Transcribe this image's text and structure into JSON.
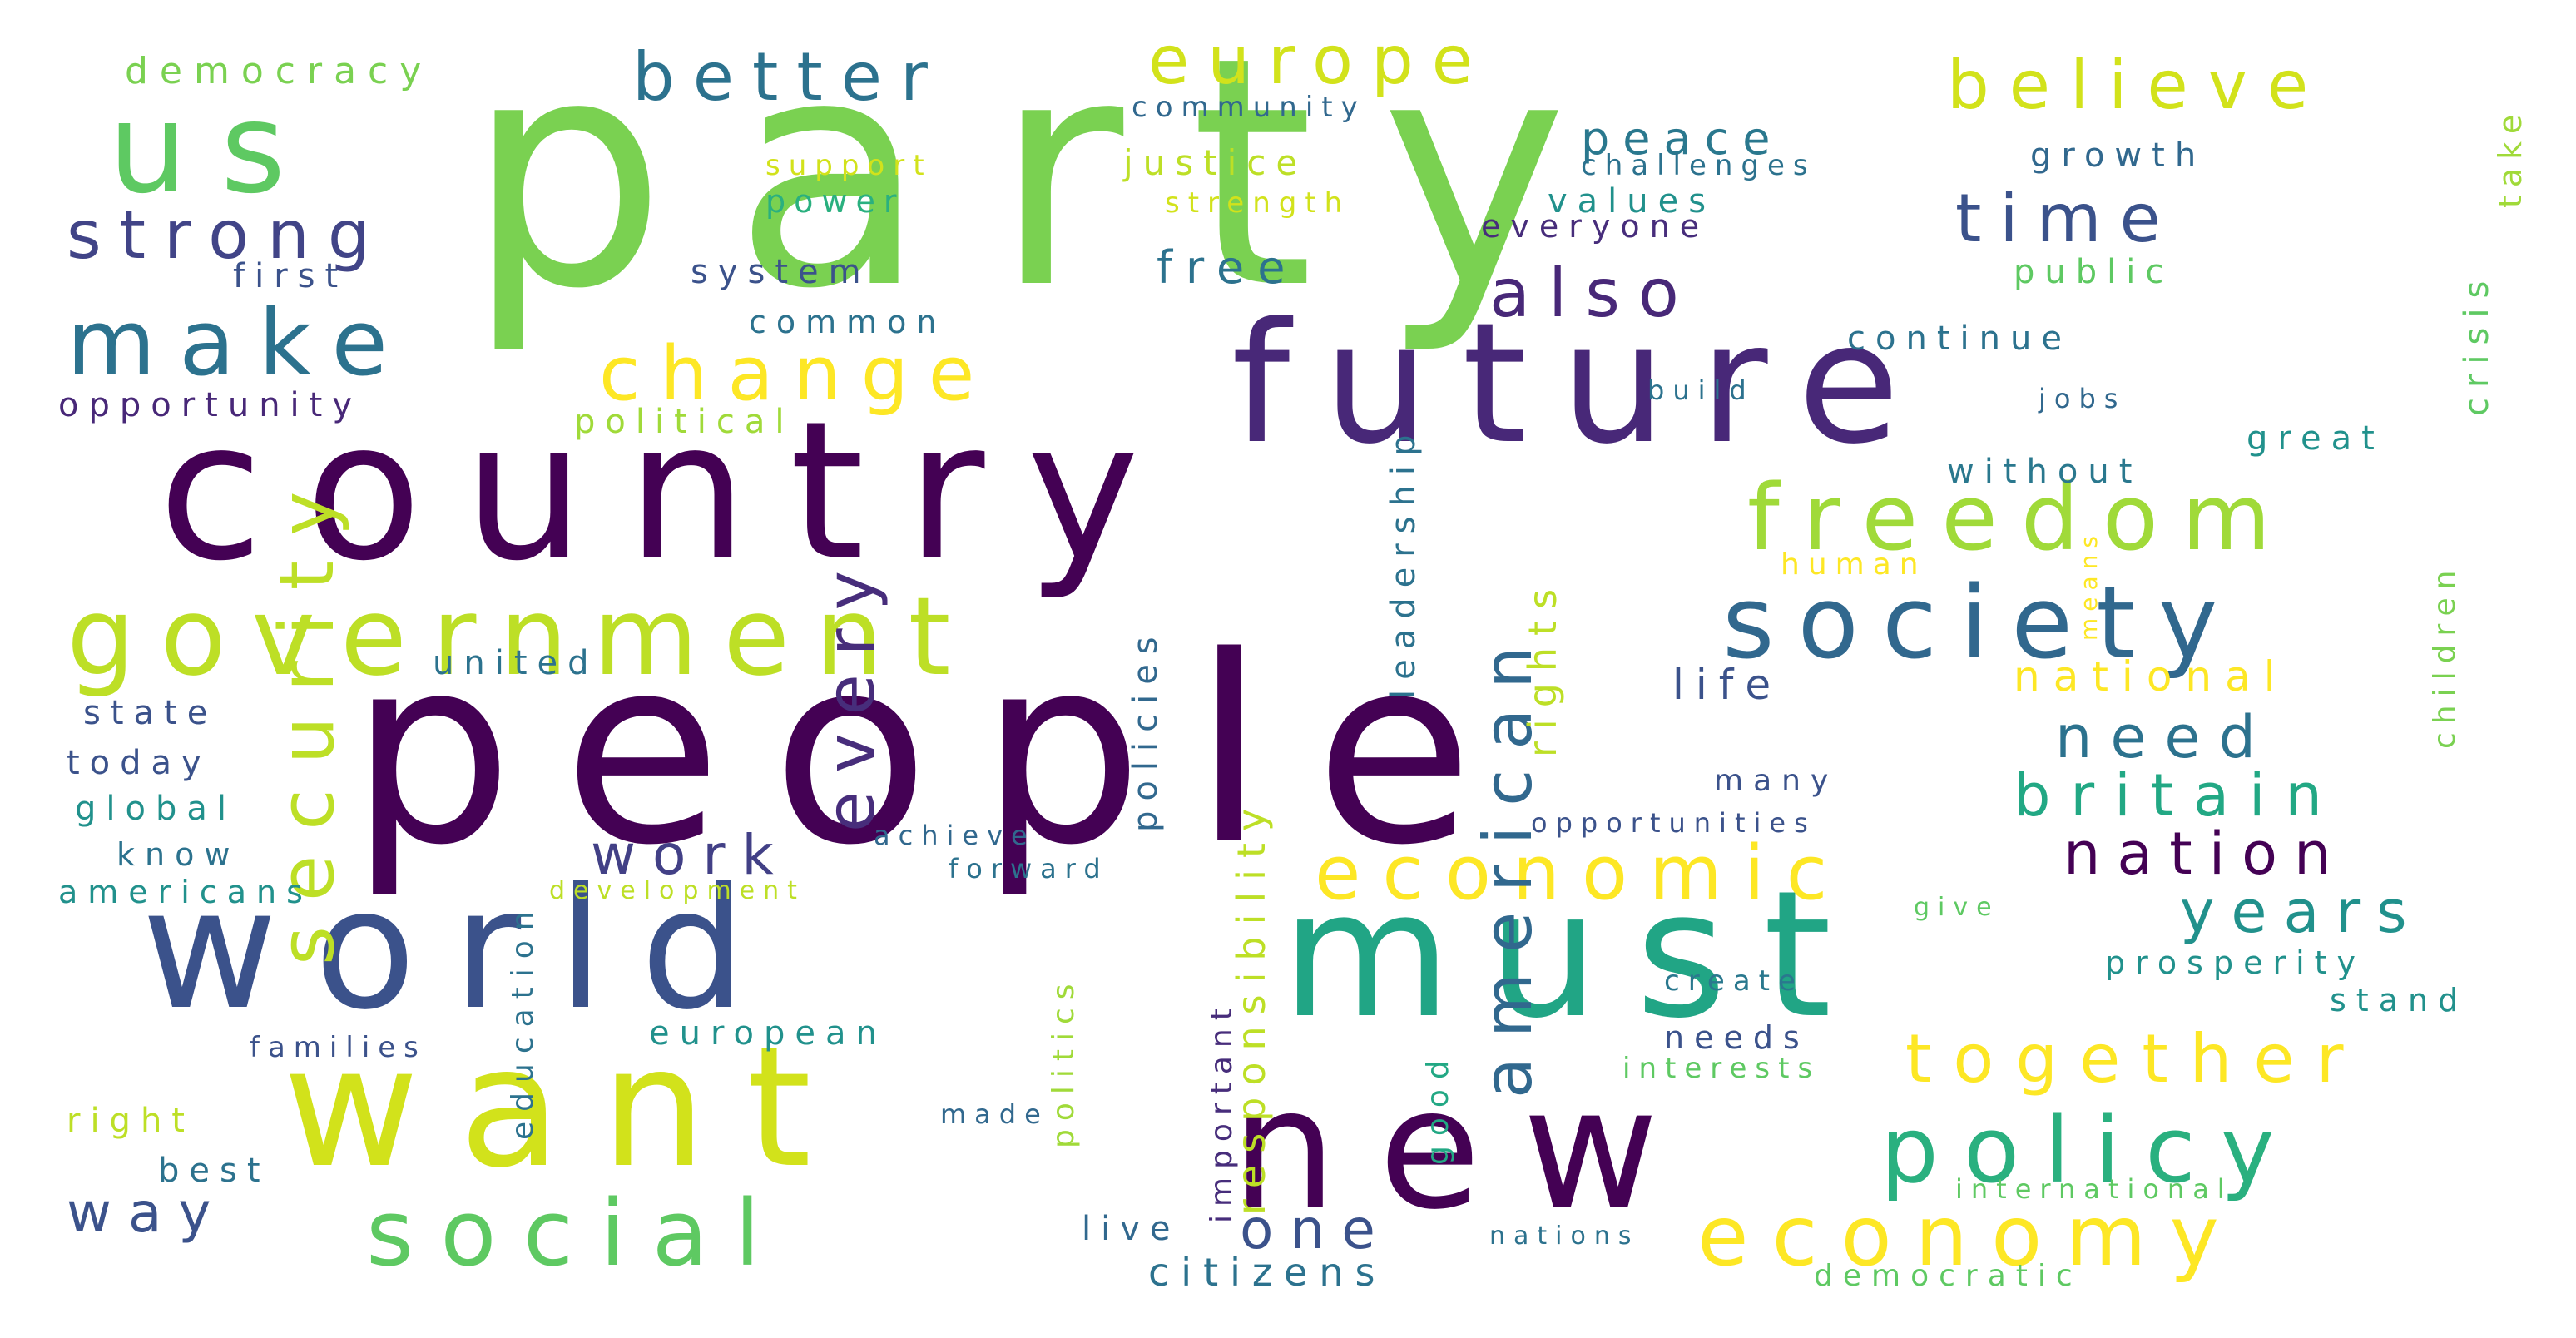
{
  "word_cloud": {
    "words": [
      {
        "text": "party",
        "color": "#7ad151"
      },
      {
        "text": "people",
        "color": "#440154"
      },
      {
        "text": "country",
        "color": "#440154"
      },
      {
        "text": "world",
        "color": "#3b528b"
      },
      {
        "text": "want",
        "color": "#d2e21b"
      },
      {
        "text": "must",
        "color": "#21a585"
      },
      {
        "text": "new",
        "color": "#440154"
      },
      {
        "text": "government",
        "color": "#bddf26"
      },
      {
        "text": "future",
        "color": "#482878"
      },
      {
        "text": "us",
        "color": "#5ec962"
      },
      {
        "text": "society",
        "color": "#31688e"
      },
      {
        "text": "freedom",
        "color": "#a0da39"
      },
      {
        "text": "economic",
        "color": "#fde725"
      },
      {
        "text": "economy",
        "color": "#fde725"
      },
      {
        "text": "policy",
        "color": "#2ab07f"
      },
      {
        "text": "social",
        "color": "#5ec962"
      },
      {
        "text": "make",
        "color": "#2c728e"
      },
      {
        "text": "change",
        "color": "#fde725"
      },
      {
        "text": "security",
        "color": "#bddf26"
      },
      {
        "text": "strong",
        "color": "#414487"
      },
      {
        "text": "better",
        "color": "#2c728e"
      },
      {
        "text": "europe",
        "color": "#d2e21b"
      },
      {
        "text": "believe",
        "color": "#d2e21b"
      },
      {
        "text": "time",
        "color": "#3b528b"
      },
      {
        "text": "also",
        "color": "#482878"
      },
      {
        "text": "every",
        "color": "#472d7b"
      },
      {
        "text": "american",
        "color": "#31688e"
      },
      {
        "text": "together",
        "color": "#fde725"
      },
      {
        "text": "britain",
        "color": "#22a884"
      },
      {
        "text": "nation",
        "color": "#440154"
      },
      {
        "text": "years",
        "color": "#21918c"
      },
      {
        "text": "need",
        "color": "#2c728e"
      },
      {
        "text": "national",
        "color": "#fde725"
      },
      {
        "text": "work",
        "color": "#424086"
      },
      {
        "text": "one",
        "color": "#3b528b"
      },
      {
        "text": "way",
        "color": "#3b528b"
      },
      {
        "text": "peace",
        "color": "#2a788e"
      },
      {
        "text": "democracy",
        "color": "#7ad151"
      },
      {
        "text": "opportunity",
        "color": "#482878"
      },
      {
        "text": "political",
        "color": "#a0da39"
      },
      {
        "text": "first",
        "color": "#3b528b"
      },
      {
        "text": "support",
        "color": "#d2e21b"
      },
      {
        "text": "power",
        "color": "#2ab07f"
      },
      {
        "text": "justice",
        "color": "#bddf26"
      },
      {
        "text": "strength",
        "color": "#d2e21b"
      },
      {
        "text": "community",
        "color": "#31688e"
      },
      {
        "text": "system",
        "color": "#3b528b"
      },
      {
        "text": "common",
        "color": "#2c728e"
      },
      {
        "text": "free",
        "color": "#2c728e"
      },
      {
        "text": "values",
        "color": "#21918c"
      },
      {
        "text": "everyone",
        "color": "#472d7b"
      },
      {
        "text": "challenges",
        "color": "#2c728e"
      },
      {
        "text": "growth",
        "color": "#31688e"
      },
      {
        "text": "public",
        "color": "#5ec962"
      },
      {
        "text": "continue",
        "color": "#2c728e"
      },
      {
        "text": "build",
        "color": "#2c728e"
      },
      {
        "text": "jobs",
        "color": "#31688e"
      },
      {
        "text": "great",
        "color": "#21918c"
      },
      {
        "text": "without",
        "color": "#2a788e"
      },
      {
        "text": "human",
        "color": "#fde725"
      },
      {
        "text": "means",
        "color": "#fde725"
      },
      {
        "text": "children",
        "color": "#7ad151"
      },
      {
        "text": "crisis",
        "color": "#5ec962"
      },
      {
        "text": "take",
        "color": "#a0da39"
      },
      {
        "text": "leadership",
        "color": "#2c728e"
      },
      {
        "text": "rights",
        "color": "#bddf26"
      },
      {
        "text": "responsibility",
        "color": "#bddf26"
      },
      {
        "text": "policies",
        "color": "#31688e"
      },
      {
        "text": "life",
        "color": "#3b528b"
      },
      {
        "text": "many",
        "color": "#3b528b"
      },
      {
        "text": "united",
        "color": "#2c728e"
      },
      {
        "text": "state",
        "color": "#3b528b"
      },
      {
        "text": "today",
        "color": "#3b528b"
      },
      {
        "text": "global",
        "color": "#21918c"
      },
      {
        "text": "know",
        "color": "#2c728e"
      },
      {
        "text": "americans",
        "color": "#21918c"
      },
      {
        "text": "families",
        "color": "#3b528b"
      },
      {
        "text": "right",
        "color": "#bddf26"
      },
      {
        "text": "best",
        "color": "#2c728e"
      },
      {
        "text": "education",
        "color": "#2c728e"
      },
      {
        "text": "achieve",
        "color": "#31688e"
      },
      {
        "text": "forward",
        "color": "#2c728e"
      },
      {
        "text": "development",
        "color": "#bddf26"
      },
      {
        "text": "european",
        "color": "#21918c"
      },
      {
        "text": "politics",
        "color": "#a0da39"
      },
      {
        "text": "made",
        "color": "#31688e"
      },
      {
        "text": "important",
        "color": "#472d7b"
      },
      {
        "text": "good",
        "color": "#22a884"
      },
      {
        "text": "live",
        "color": "#31688e"
      },
      {
        "text": "citizens",
        "color": "#2c728e"
      },
      {
        "text": "nations",
        "color": "#2c728e"
      },
      {
        "text": "democratic",
        "color": "#5ec962"
      },
      {
        "text": "international",
        "color": "#5ec962"
      },
      {
        "text": "opportunities",
        "color": "#3b528b"
      },
      {
        "text": "give",
        "color": "#5ec962"
      },
      {
        "text": "prosperity",
        "color": "#21918c"
      },
      {
        "text": "stand",
        "color": "#21918c"
      },
      {
        "text": "create",
        "color": "#2a788e"
      },
      {
        "text": "needs",
        "color": "#3b528b"
      },
      {
        "text": "interests",
        "color": "#5ec962"
      }
    ]
  }
}
